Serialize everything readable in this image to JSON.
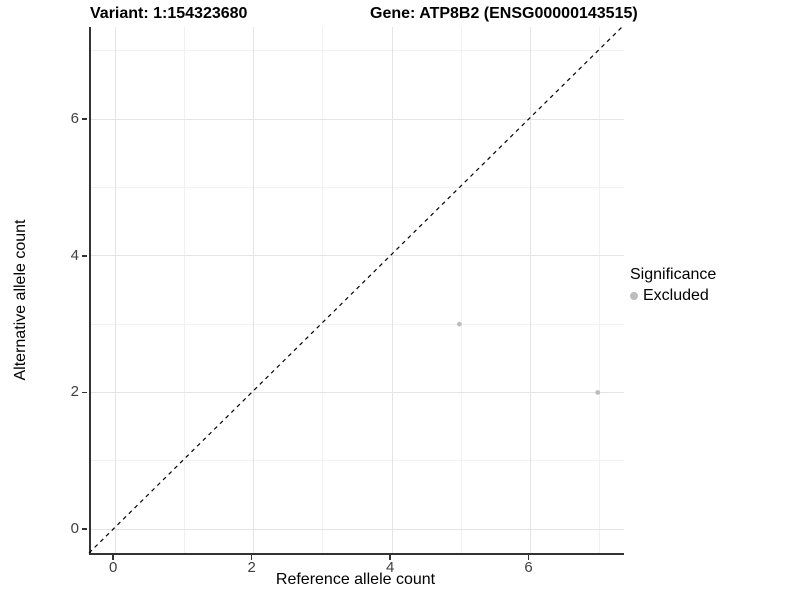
{
  "chart_data": {
    "type": "scatter",
    "title_left": "Variant: 1:154323680",
    "title_right": "Gene: ATP8B2 (ENSG00000143515)",
    "xlabel": "Reference allele count",
    "ylabel": "Alternative allele count",
    "xlim": [
      -0.35,
      7.35
    ],
    "ylim": [
      -0.35,
      7.35
    ],
    "x_major_breaks": [
      0,
      2,
      4,
      6
    ],
    "y_major_breaks": [
      0,
      2,
      4,
      6
    ],
    "x_minor_breaks": [
      1,
      3,
      5,
      7
    ],
    "y_minor_breaks": [
      1,
      3,
      5,
      7
    ],
    "grid": true,
    "background": "#ffffff",
    "axis_line_color": "#333333",
    "tick_label_color": "#404040",
    "series": [
      {
        "name": "Excluded",
        "color": "#bdbdbd",
        "points": [
          {
            "x": 5,
            "y": 3
          },
          {
            "x": 7,
            "y": 2
          }
        ]
      }
    ],
    "identity_line": {
      "style": "dashed",
      "color": "#000000",
      "from": -0.35,
      "to": 7.35
    },
    "legend": {
      "title": "Significance",
      "position": "right",
      "items": [
        {
          "label": "Excluded",
          "color": "#bdbdbd"
        }
      ]
    }
  }
}
